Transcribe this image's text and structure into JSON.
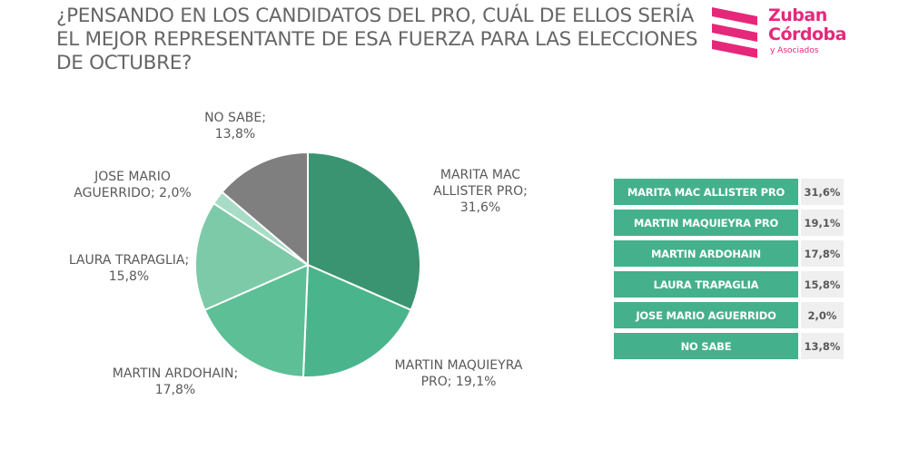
{
  "title": "¿PENSANDO EN LOS CANDIDATOS DEL PRO, CUÁL DE ELLOS SERÍA EL MEJOR REPRESENTANTE DE ESA FUERZA PARA LAS ELECCIONES DE OCTUBRE?",
  "logo": {
    "line1": "Zuban",
    "line2": "Córdoba",
    "line3": "y Asociados"
  },
  "colors": {
    "brand": "#e6287a",
    "table_bar": "#45b08c",
    "table_pct_bg": "#efefef"
  },
  "chart_data": {
    "type": "pie",
    "slices": [
      {
        "label_line1": "MARITA MAC",
        "label_line2": "ALLISTER PRO;",
        "label_line3": "31,6%",
        "value": 31.6,
        "color": "#3a9472"
      },
      {
        "label_line1": "MARTIN MAQUIEYRA",
        "label_line2": "PRO; 19,1%",
        "label_line3": "",
        "value": 19.1,
        "color": "#4ab58c"
      },
      {
        "label_line1": "MARTIN ARDOHAIN;",
        "label_line2": "17,8%",
        "label_line3": "",
        "value": 17.8,
        "color": "#5dbf96"
      },
      {
        "label_line1": "LAURA TRAPAGLIA;",
        "label_line2": "15,8%",
        "label_line3": "",
        "value": 15.8,
        "color": "#7dcaa9"
      },
      {
        "label_line1": "JOSE MARIO",
        "label_line2": "AGUERRIDO; 2,0%",
        "label_line3": "",
        "value": 2.0,
        "color": "#a8dcc6"
      },
      {
        "label_line1": "NO SABE;",
        "label_line2": "13,8%",
        "label_line3": "",
        "value": 13.8,
        "color": "#7f7f7f"
      }
    ]
  },
  "table": {
    "rows": [
      {
        "name": "MARITA MAC ALLISTER PRO",
        "pct": "31,6%"
      },
      {
        "name": "MARTIN MAQUIEYRA PRO",
        "pct": "19,1%"
      },
      {
        "name": "MARTIN ARDOHAIN",
        "pct": "17,8%"
      },
      {
        "name": "LAURA TRAPAGLIA",
        "pct": "15,8%"
      },
      {
        "name": "JOSE MARIO AGUERRIDO",
        "pct": "2,0%"
      },
      {
        "name": "NO SABE",
        "pct": "13,8%"
      }
    ]
  }
}
